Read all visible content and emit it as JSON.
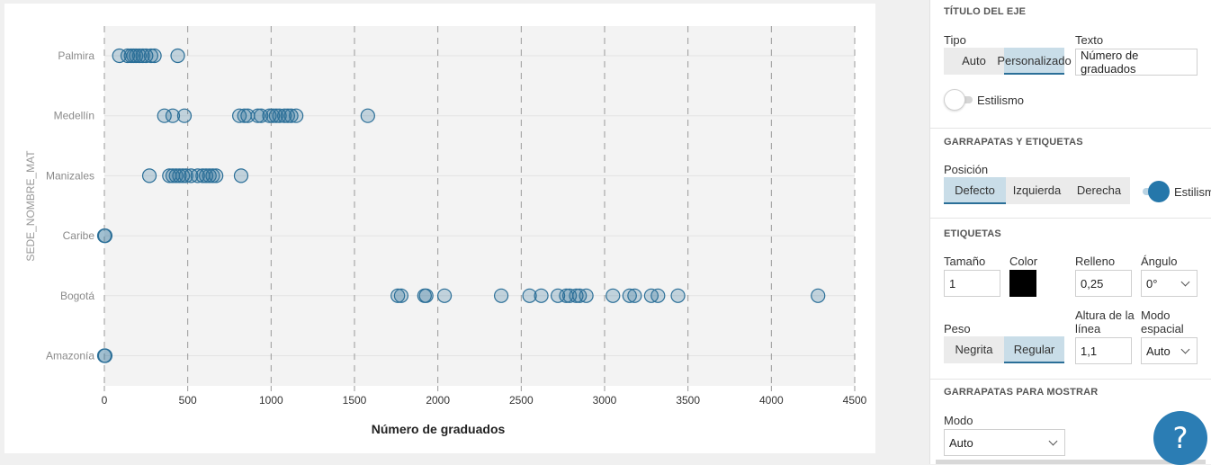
{
  "chart_data": {
    "type": "scatter",
    "xlabel": "Número de graduados",
    "ylabel": "SEDE_NOMBRE_MAT",
    "xlim": [
      0,
      4500
    ],
    "xticks": [
      0,
      500,
      1000,
      1500,
      2000,
      2500,
      3000,
      3500,
      4000,
      4500
    ],
    "categories": [
      "Palmira",
      "Medellín",
      "Manizales",
      "Caribe",
      "Bogotá",
      "Amazonía"
    ],
    "grid": true,
    "point_color": "#2b6f98",
    "series": [
      {
        "category": "Palmira",
        "x": [
          90,
          140,
          160,
          175,
          190,
          210,
          230,
          250,
          280,
          300,
          440
        ]
      },
      {
        "category": "Medellín",
        "x": [
          360,
          410,
          480,
          810,
          840,
          860,
          920,
          940,
          990,
          1010,
          1030,
          1050,
          1080,
          1100,
          1120,
          1150,
          1580
        ]
      },
      {
        "category": "Manizales",
        "x": [
          270,
          390,
          410,
          430,
          450,
          470,
          490,
          520,
          560,
          590,
          610,
          630,
          650,
          670,
          820
        ]
      },
      {
        "category": "Caribe",
        "x": [
          0,
          5
        ]
      },
      {
        "category": "Bogotá",
        "x": [
          1760,
          1780,
          1920,
          1930,
          2040,
          2380,
          2550,
          2620,
          2720,
          2770,
          2790,
          2830,
          2850,
          2890,
          3050,
          3150,
          3180,
          3280,
          3320,
          3440,
          4280
        ]
      },
      {
        "category": "Amazonía",
        "x": [
          0,
          5
        ]
      }
    ]
  },
  "panel": {
    "axis_title_section": "TÍTULO DEL EJE",
    "tipo_label": "Tipo",
    "texto_label": "Texto",
    "tipo_options": [
      "Auto",
      "Personalizado"
    ],
    "texto_value": "Número de graduados",
    "estilismo_label": "Estilismo",
    "ticks_section": "GARRAPATAS Y ETIQUETAS",
    "posicion_label": "Posición",
    "posicion_options": [
      "Defecto",
      "Izquierda",
      "Derecha"
    ],
    "estilismo2_label": "Estilismo",
    "labels_section": "ETIQUETAS",
    "tamano_label": "Tamaño",
    "tamano_value": "1",
    "color_label": "Color",
    "color_value": "#000000",
    "relleno_label": "Relleno",
    "relleno_value": "0,25",
    "angulo_label": "Ángulo",
    "angulo_value": "0°",
    "peso_label": "Peso",
    "peso_options": [
      "Negrita",
      "Regular"
    ],
    "altura_label_1": "Altura de la",
    "altura_label_2": "línea",
    "altura_value": "1,1",
    "modo_espacial_label_1": "Modo",
    "modo_espacial_label_2": "espacial",
    "modo_espacial_value": "Auto",
    "show_ticks_section": "GARRAPATAS PARA MOSTRAR",
    "modo_label": "Modo",
    "modo_value": "Auto"
  },
  "help": {
    "label": "?"
  }
}
